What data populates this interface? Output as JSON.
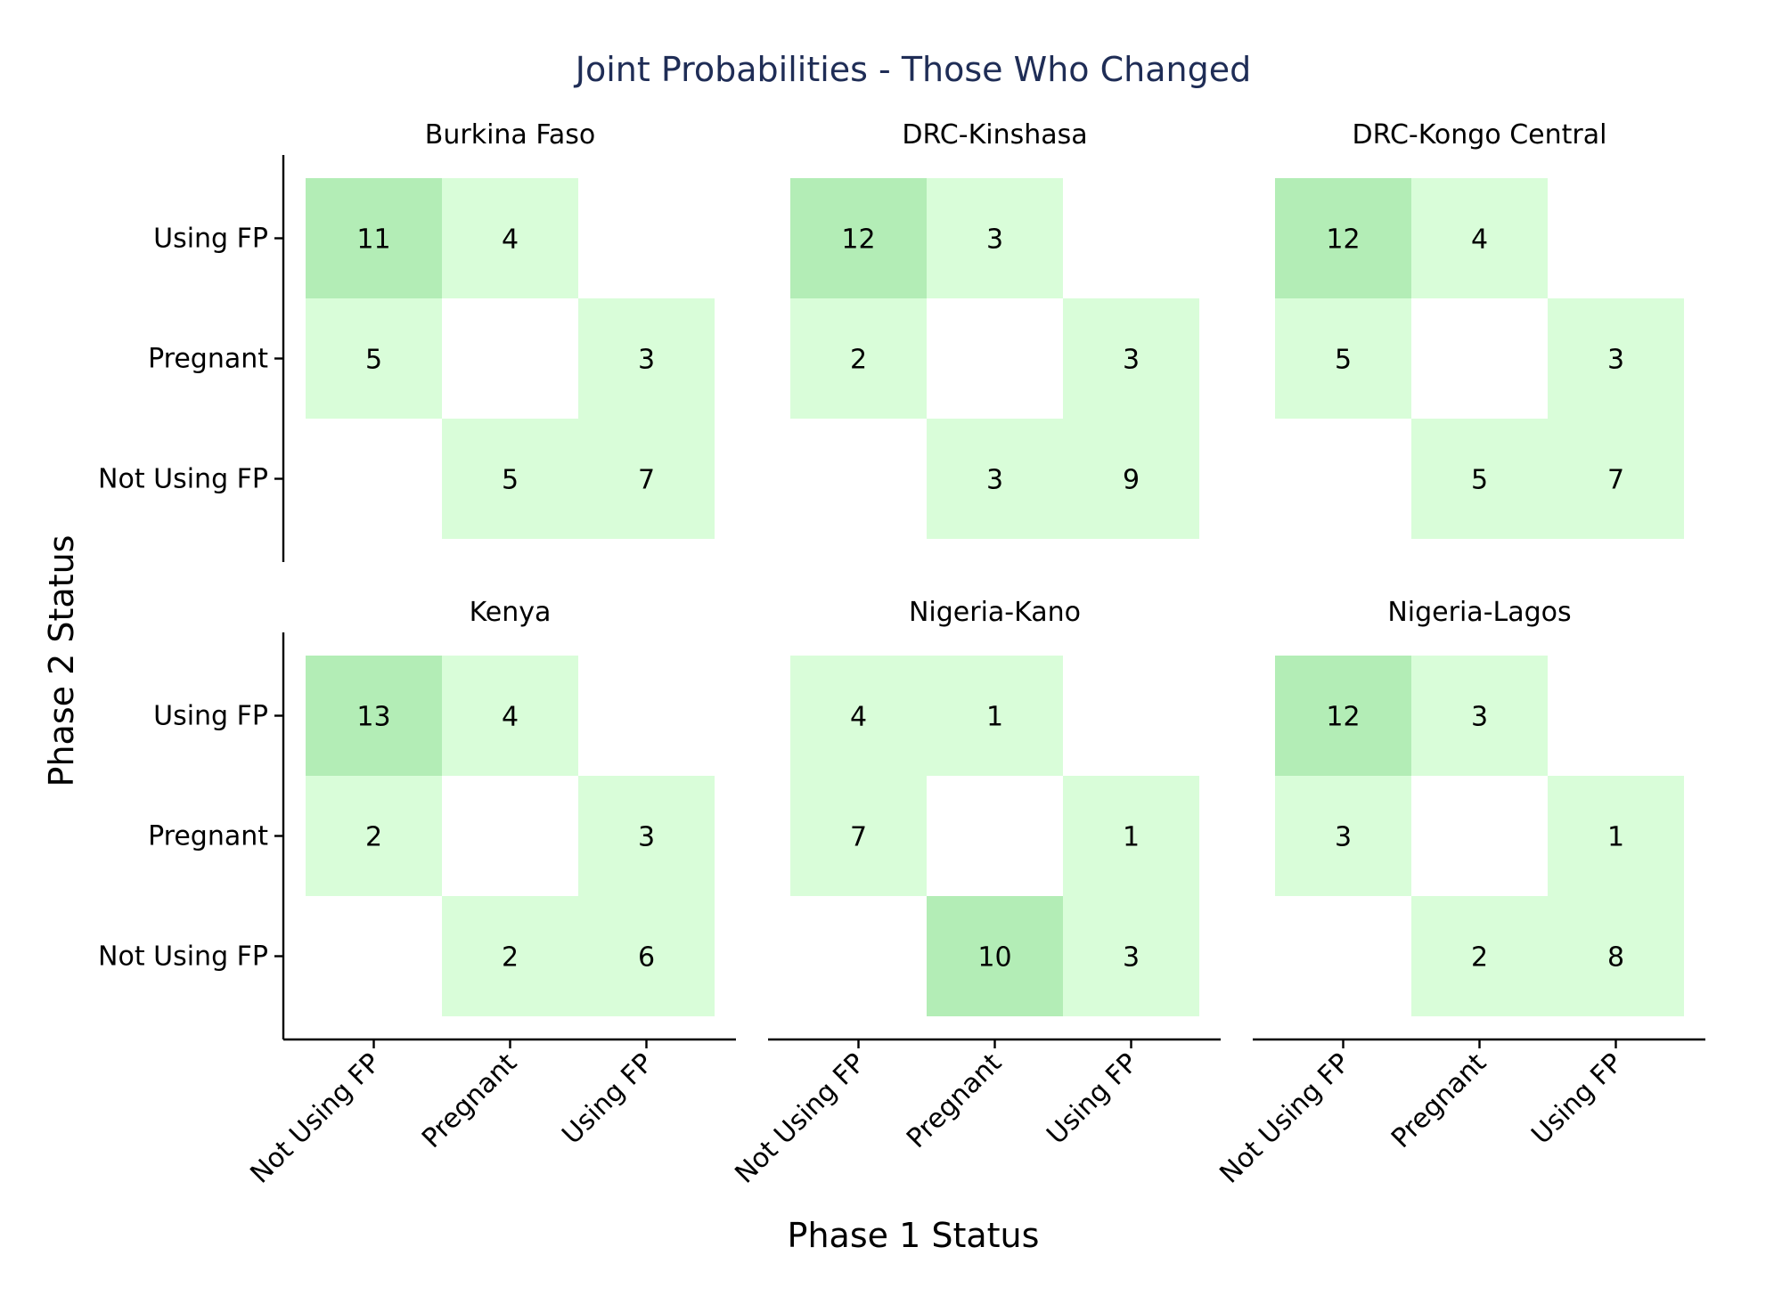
{
  "chart_data": {
    "type": "heatmap",
    "title": "Joint Probabilities - Those Who Changed",
    "xlabel": "Phase 1 Status",
    "ylabel": "Phase 2 Status",
    "x_categories": [
      "Not Using FP",
      "Pregnant",
      "Using FP"
    ],
    "y_categories": [
      "Using FP",
      "Pregnant",
      "Not Using FP"
    ],
    "value_scale_colors": {
      "low": "#d9fdd9",
      "high": "#b3edb6"
    },
    "panels": [
      {
        "name": "Burkina Faso",
        "cells": [
          {
            "x": "Not Using FP",
            "y": "Using FP",
            "value": 11
          },
          {
            "x": "Pregnant",
            "y": "Using FP",
            "value": 4
          },
          {
            "x": "Not Using FP",
            "y": "Pregnant",
            "value": 5
          },
          {
            "x": "Using FP",
            "y": "Pregnant",
            "value": 3
          },
          {
            "x": "Pregnant",
            "y": "Not Using FP",
            "value": 5
          },
          {
            "x": "Using FP",
            "y": "Not Using FP",
            "value": 7
          }
        ]
      },
      {
        "name": "DRC-Kinshasa",
        "cells": [
          {
            "x": "Not Using FP",
            "y": "Using FP",
            "value": 12
          },
          {
            "x": "Pregnant",
            "y": "Using FP",
            "value": 3
          },
          {
            "x": "Not Using FP",
            "y": "Pregnant",
            "value": 2
          },
          {
            "x": "Using FP",
            "y": "Pregnant",
            "value": 3
          },
          {
            "x": "Pregnant",
            "y": "Not Using FP",
            "value": 3
          },
          {
            "x": "Using FP",
            "y": "Not Using FP",
            "value": 9
          }
        ]
      },
      {
        "name": "DRC-Kongo Central",
        "cells": [
          {
            "x": "Not Using FP",
            "y": "Using FP",
            "value": 12
          },
          {
            "x": "Pregnant",
            "y": "Using FP",
            "value": 4
          },
          {
            "x": "Not Using FP",
            "y": "Pregnant",
            "value": 5
          },
          {
            "x": "Using FP",
            "y": "Pregnant",
            "value": 3
          },
          {
            "x": "Pregnant",
            "y": "Not Using FP",
            "value": 5
          },
          {
            "x": "Using FP",
            "y": "Not Using FP",
            "value": 7
          }
        ]
      },
      {
        "name": "Kenya",
        "cells": [
          {
            "x": "Not Using FP",
            "y": "Using FP",
            "value": 13
          },
          {
            "x": "Pregnant",
            "y": "Using FP",
            "value": 4
          },
          {
            "x": "Not Using FP",
            "y": "Pregnant",
            "value": 2
          },
          {
            "x": "Using FP",
            "y": "Pregnant",
            "value": 3
          },
          {
            "x": "Pregnant",
            "y": "Not Using FP",
            "value": 2
          },
          {
            "x": "Using FP",
            "y": "Not Using FP",
            "value": 6
          }
        ]
      },
      {
        "name": "Nigeria-Kano",
        "cells": [
          {
            "x": "Not Using FP",
            "y": "Using FP",
            "value": 4
          },
          {
            "x": "Pregnant",
            "y": "Using FP",
            "value": 1
          },
          {
            "x": "Not Using FP",
            "y": "Pregnant",
            "value": 7
          },
          {
            "x": "Using FP",
            "y": "Pregnant",
            "value": 1
          },
          {
            "x": "Pregnant",
            "y": "Not Using FP",
            "value": 10
          },
          {
            "x": "Using FP",
            "y": "Not Using FP",
            "value": 3
          }
        ]
      },
      {
        "name": "Nigeria-Lagos",
        "cells": [
          {
            "x": "Not Using FP",
            "y": "Using FP",
            "value": 12
          },
          {
            "x": "Pregnant",
            "y": "Using FP",
            "value": 3
          },
          {
            "x": "Not Using FP",
            "y": "Pregnant",
            "value": 3
          },
          {
            "x": "Using FP",
            "y": "Pregnant",
            "value": 1
          },
          {
            "x": "Pregnant",
            "y": "Not Using FP",
            "value": 2
          },
          {
            "x": "Using FP",
            "y": "Not Using FP",
            "value": 8
          }
        ]
      }
    ]
  }
}
